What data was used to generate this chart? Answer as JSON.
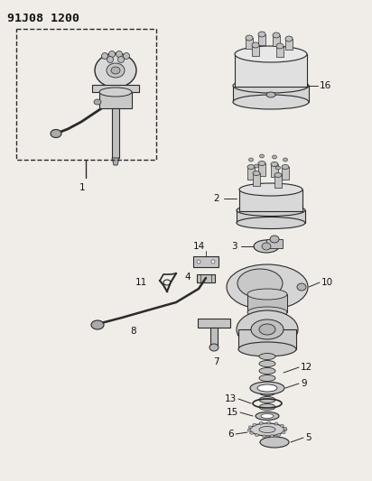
{
  "title": "91J08 1200",
  "bg": "#f5f5f0",
  "lc": "#2a2a2a",
  "tc": "#111111",
  "figsize": [
    4.12,
    5.33
  ],
  "dpi": 100
}
